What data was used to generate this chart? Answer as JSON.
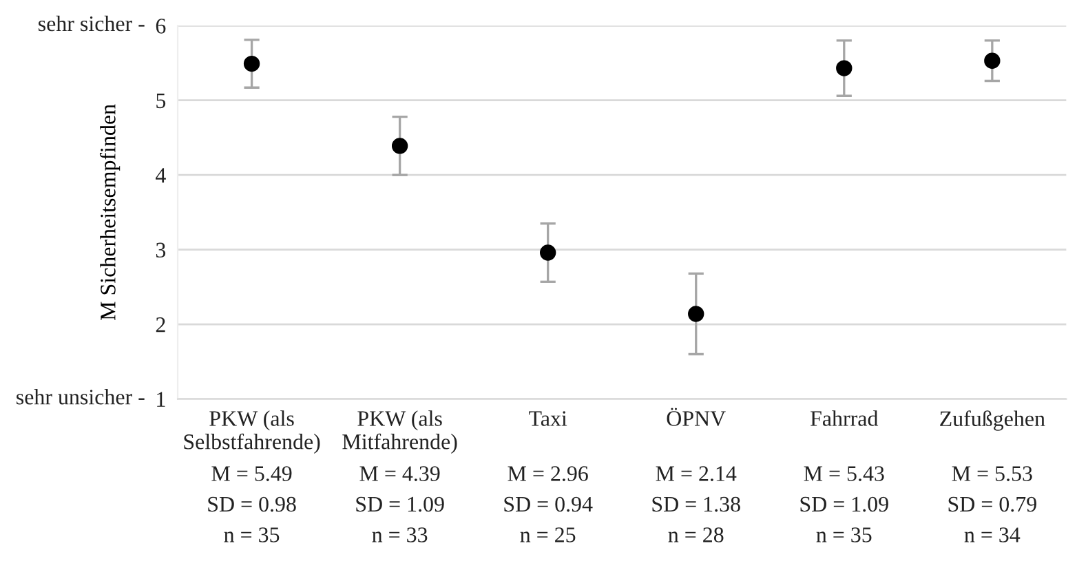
{
  "chart_data": {
    "type": "scatter",
    "ylabel": "M Sicherheitsempfinden",
    "categories": [
      "PKW (als\nSelbstfahrende)",
      "PKW (als\nMitfahrende)",
      "Taxi",
      "ÖPNV",
      "Fahrrad",
      "Zufußgehen"
    ],
    "values": [
      5.49,
      4.39,
      2.96,
      2.14,
      5.43,
      5.53
    ],
    "errors": [
      0.32,
      0.39,
      0.39,
      0.54,
      0.37,
      0.27
    ],
    "value_labels": [
      "M = 5.49",
      "M = 4.39",
      "M = 2.96",
      "M = 2.14",
      "M = 5.43",
      "M = 5.53"
    ],
    "annotations": [
      "sehr sicher -",
      "sehr unsicher -",
      "SD = 0.98",
      "SD = 1.09",
      "SD = 0.94",
      "SD = 1.38",
      "SD = 1.09",
      "SD = 0.79",
      "n = 35",
      "n = 33",
      "n = 25",
      "n = 28",
      "n = 35",
      "n = 34"
    ],
    "color": "#000000",
    "marker": "circle",
    "ylim": [
      1,
      6
    ],
    "yticks": [
      1,
      2,
      3,
      4,
      5,
      6
    ],
    "grid": "y"
  }
}
